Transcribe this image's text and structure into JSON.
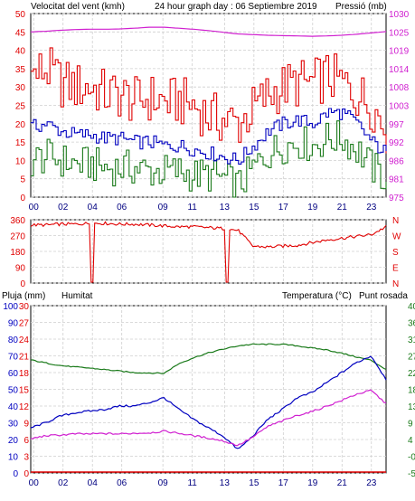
{
  "title": "24 hour graph day : 06 Septiembre 2019",
  "colors": {
    "wind": "#e00000",
    "gust_low": "#1a7a1a",
    "wind_avg": "#0000c0",
    "pressure": "#d020d0",
    "direction": "#e00000",
    "rain": "#e00000",
    "humidity": "#0000c0",
    "temperature": "#1a7a1a",
    "dewpoint": "#d020d0",
    "grid": "#cfcfcf",
    "frame": "#000000",
    "panel_bg": "#ffffff"
  },
  "x_ticks": [
    "00",
    "02",
    "04",
    "06",
    "09",
    "11",
    "13",
    "15",
    "17",
    "19",
    "21",
    "23"
  ],
  "chart_data": [
    {
      "type": "line",
      "title": "24 hour graph day : 06 Septiembre 2019",
      "ylabel_left": "Velocitat del vent (kmh)",
      "ylabel_right": "Pressió (mb)",
      "y_left_ticks": [
        "50",
        "45",
        "40",
        "35",
        "30",
        "25",
        "20",
        "15",
        "10",
        "5",
        "0"
      ],
      "y_right_ticks": [
        "1030",
        "1025",
        "1019",
        "1014",
        "1008",
        "1003",
        "997",
        "992",
        "986",
        "981",
        "975"
      ],
      "ylim_left": [
        0,
        50
      ],
      "ylim_right": [
        975,
        1030
      ],
      "x": [
        0,
        1,
        2,
        3,
        4,
        5,
        6,
        7,
        8,
        9,
        10,
        11,
        12,
        13,
        14,
        15,
        16,
        17,
        18,
        19,
        20,
        21,
        22,
        23,
        24
      ],
      "series": [
        {
          "key": "gust",
          "values": [
            33,
            35,
            31,
            30,
            30,
            28,
            28,
            26,
            27,
            26,
            26,
            25,
            22,
            21,
            20,
            24,
            28,
            30,
            31,
            31,
            33,
            31,
            28,
            25,
            18
          ]
        },
        {
          "key": "average",
          "values": [
            19,
            20,
            18,
            17,
            17,
            16,
            16,
            15,
            15,
            14,
            14,
            13,
            12,
            11,
            10,
            14,
            18,
            20,
            21,
            20,
            23,
            23,
            20,
            15,
            12
          ]
        },
        {
          "key": "low",
          "values": [
            10,
            11,
            10,
            9,
            9,
            8,
            8,
            8,
            7,
            7,
            7,
            6,
            6,
            5,
            3,
            8,
            12,
            14,
            15,
            14,
            16,
            16,
            13,
            8,
            5
          ]
        },
        {
          "key": "pressure",
          "values": [
            1024.5,
            1024.7,
            1025.0,
            1025.2,
            1025.3,
            1025.3,
            1025.4,
            1025.6,
            1025.9,
            1025.9,
            1025.6,
            1025.3,
            1024.9,
            1024.4,
            1023.9,
            1023.7,
            1023.5,
            1023.4,
            1023.3,
            1023.2,
            1023.3,
            1023.5,
            1023.8,
            1024.2,
            1024.6
          ]
        }
      ]
    },
    {
      "type": "line",
      "title": "",
      "ylabel_left": "",
      "y_left_ticks": [
        "360",
        "270",
        "180",
        "90",
        "0"
      ],
      "y_right_ticks": [
        "N",
        "W",
        "S",
        "E",
        "N"
      ],
      "ylim_left": [
        0,
        360
      ],
      "x": [
        0,
        1,
        2,
        3,
        4,
        5,
        6,
        7,
        8,
        9,
        10,
        11,
        12,
        13,
        14,
        15,
        16,
        17,
        18,
        19,
        20,
        21,
        22,
        23,
        24
      ],
      "series": [
        {
          "key": "direction",
          "values": [
            330,
            330,
            335,
            335,
            340,
            340,
            335,
            335,
            330,
            325,
            320,
            320,
            315,
            310,
            300,
            210,
            205,
            210,
            215,
            230,
            245,
            255,
            265,
            275,
            320
          ]
        }
      ]
    },
    {
      "type": "line",
      "title": "",
      "labels": {
        "rain": "Pluja (mm)",
        "humidity": "Humitat",
        "temperature": "Temperatura (°C)",
        "dewpoint": "Punt rosada"
      },
      "y_hum_ticks": [
        "100",
        "90",
        "80",
        "70",
        "60",
        "50",
        "40",
        "30",
        "20",
        "10",
        "0"
      ],
      "y_rain_ticks": [
        "30",
        "27",
        "24",
        "21",
        "18",
        "15",
        "12",
        "9",
        "6",
        "3",
        "0"
      ],
      "y_temp_ticks": [
        "40",
        "36",
        "31",
        "27",
        "22",
        "18",
        "13",
        "9",
        "4",
        "-0",
        "-5"
      ],
      "ylim_humidity": [
        0,
        100
      ],
      "ylim_temperature": [
        -5,
        40
      ],
      "x": [
        0,
        1,
        2,
        3,
        4,
        5,
        6,
        7,
        8,
        9,
        10,
        11,
        12,
        13,
        14,
        15,
        16,
        17,
        18,
        19,
        20,
        21,
        22,
        23,
        24
      ],
      "series": [
        {
          "key": "temperature",
          "values": [
            25.4,
            24.6,
            23.9,
            23.5,
            23.2,
            22.8,
            22.4,
            22.0,
            21.9,
            21.8,
            24.4,
            26.0,
            27.3,
            28.3,
            29.2,
            29.6,
            29.6,
            29.6,
            29.2,
            28.6,
            28.1,
            27.2,
            26.2,
            25.3,
            22.8
          ]
        },
        {
          "key": "humidity",
          "values": [
            27,
            30,
            34,
            36,
            37,
            38,
            40,
            40,
            42,
            45,
            38,
            32,
            27,
            22,
            14,
            22,
            32,
            38,
            45,
            48,
            54,
            60,
            66,
            70,
            56
          ]
        },
        {
          "key": "dewpoint",
          "values": [
            4.2,
            5.0,
            5.2,
            5.5,
            5.5,
            5.6,
            5.5,
            5.7,
            5.8,
            6.2,
            5.7,
            5.0,
            4.4,
            3.6,
            2.4,
            4.6,
            7.5,
            9.0,
            10.5,
            11.5,
            13.0,
            14.5,
            16.2,
            17.2,
            13.6
          ]
        },
        {
          "key": "rain",
          "values": [
            0,
            0,
            0,
            0,
            0,
            0,
            0,
            0,
            0,
            0,
            0,
            0,
            0,
            0,
            0,
            0,
            0,
            0,
            0,
            0,
            0,
            0,
            0,
            0,
            0
          ]
        }
      ]
    }
  ]
}
